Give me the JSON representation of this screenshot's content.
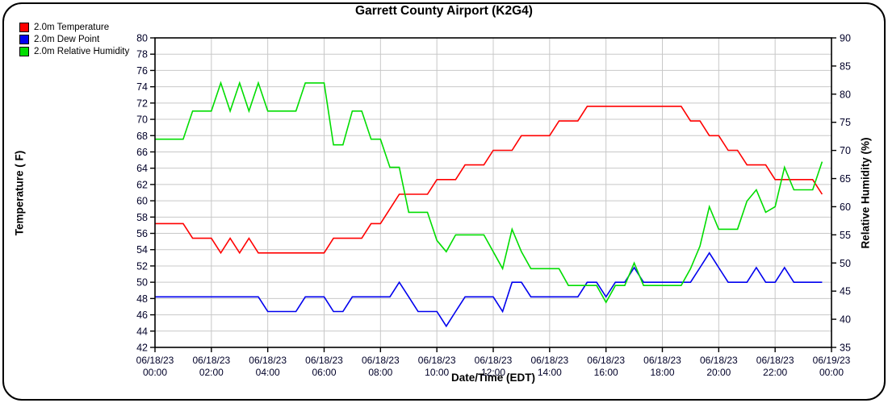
{
  "title": "Garrett County Airport (K2G4)",
  "legend": {
    "items": [
      {
        "label": "2.0m Temperature",
        "color": "#ff0000"
      },
      {
        "label": "2.0m Dew Point",
        "color": "#0000ee"
      },
      {
        "label": "2.0m Relative Humidity",
        "color": "#00dd00"
      }
    ]
  },
  "axes": {
    "x": {
      "title": "Date/Time (EDT)",
      "range_minutes": [
        0,
        1440
      ],
      "ticks": [
        {
          "date": "06/18/23",
          "time": "00:00"
        },
        {
          "date": "06/18/23",
          "time": "02:00"
        },
        {
          "date": "06/18/23",
          "time": "04:00"
        },
        {
          "date": "06/18/23",
          "time": "06:00"
        },
        {
          "date": "06/18/23",
          "time": "08:00"
        },
        {
          "date": "06/18/23",
          "time": "10:00"
        },
        {
          "date": "06/18/23",
          "time": "12:00"
        },
        {
          "date": "06/18/23",
          "time": "14:00"
        },
        {
          "date": "06/18/23",
          "time": "16:00"
        },
        {
          "date": "06/18/23",
          "time": "18:00"
        },
        {
          "date": "06/18/23",
          "time": "20:00"
        },
        {
          "date": "06/18/23",
          "time": "22:00"
        },
        {
          "date": "06/19/23",
          "time": "00:00"
        }
      ]
    },
    "y_left": {
      "title": "Temperature ( F)",
      "min": 42,
      "max": 80,
      "step": 2
    },
    "y_right": {
      "title": "Relative Humidity (%)",
      "min": 35,
      "max": 90,
      "step": 5
    }
  },
  "colors": {
    "grid": "#c8c8c8",
    "frame": "#000000",
    "tick_labels": "#000028",
    "temperature": "#ff0000",
    "dew_point": "#0000ee",
    "relative_humidity": "#00dd00"
  },
  "chart_data": {
    "type": "line",
    "title": "Garrett County Airport (K2G4)",
    "xlabel": "Date/Time (EDT)",
    "ylabel_left": "Temperature ( F)",
    "ylabel_right": "Relative Humidity (%)",
    "ylim_left": [
      42,
      80
    ],
    "ylim_right": [
      35,
      90
    ],
    "grid": true,
    "legend_position": "top-left-outside",
    "x_minutes": [
      0,
      20,
      40,
      60,
      80,
      100,
      120,
      140,
      160,
      180,
      200,
      220,
      240,
      260,
      280,
      300,
      320,
      340,
      360,
      380,
      400,
      420,
      440,
      460,
      480,
      500,
      520,
      540,
      560,
      580,
      600,
      620,
      640,
      660,
      680,
      700,
      720,
      740,
      760,
      780,
      800,
      820,
      840,
      860,
      880,
      900,
      920,
      940,
      960,
      980,
      1000,
      1020,
      1040,
      1060,
      1080,
      1100,
      1120,
      1140,
      1160,
      1180,
      1200,
      1220,
      1240,
      1260,
      1280,
      1300,
      1320,
      1340,
      1360,
      1380,
      1400,
      1420
    ],
    "series": [
      {
        "name": "2.0m Temperature",
        "axis": "left",
        "units": "F",
        "color": "#ff0000",
        "values": [
          57.2,
          57.2,
          57.2,
          57.2,
          55.4,
          55.4,
          55.4,
          53.6,
          55.4,
          53.6,
          55.4,
          53.6,
          53.6,
          53.6,
          53.6,
          53.6,
          53.6,
          53.6,
          53.6,
          55.4,
          55.4,
          55.4,
          55.4,
          57.2,
          57.2,
          59.0,
          60.8,
          60.8,
          60.8,
          60.8,
          62.6,
          62.6,
          62.6,
          64.4,
          64.4,
          64.4,
          66.2,
          66.2,
          66.2,
          68.0,
          68.0,
          68.0,
          68.0,
          69.8,
          69.8,
          69.8,
          71.6,
          71.6,
          71.6,
          71.6,
          71.6,
          71.6,
          71.6,
          71.6,
          71.6,
          71.6,
          71.6,
          69.8,
          69.8,
          68.0,
          68.0,
          66.2,
          66.2,
          64.4,
          64.4,
          64.4,
          62.6,
          62.6,
          62.6,
          62.6,
          62.6,
          60.8
        ]
      },
      {
        "name": "2.0m Dew Point",
        "axis": "left",
        "units": "F",
        "color": "#0000ee",
        "values": [
          48.2,
          48.2,
          48.2,
          48.2,
          48.2,
          48.2,
          48.2,
          48.2,
          48.2,
          48.2,
          48.2,
          48.2,
          46.4,
          46.4,
          46.4,
          46.4,
          48.2,
          48.2,
          48.2,
          46.4,
          46.4,
          48.2,
          48.2,
          48.2,
          48.2,
          48.2,
          50.0,
          48.2,
          46.4,
          46.4,
          46.4,
          44.6,
          46.4,
          48.2,
          48.2,
          48.2,
          48.2,
          46.4,
          50.0,
          50.0,
          48.2,
          48.2,
          48.2,
          48.2,
          48.2,
          48.2,
          50.0,
          50.0,
          48.2,
          50.0,
          50.0,
          51.8,
          50.0,
          50.0,
          50.0,
          50.0,
          50.0,
          50.0,
          51.8,
          53.6,
          51.8,
          50.0,
          50.0,
          50.0,
          51.8,
          50.0,
          50.0,
          51.8,
          50.0,
          50.0,
          50.0,
          50.0
        ]
      },
      {
        "name": "2.0m Relative Humidity",
        "axis": "right",
        "units": "%",
        "color": "#00dd00",
        "values": [
          72,
          72,
          72,
          72,
          77,
          77,
          77,
          82,
          77,
          82,
          77,
          82,
          77,
          77,
          77,
          77,
          82,
          82,
          82,
          71,
          71,
          77,
          77,
          72,
          72,
          67,
          67,
          59,
          59,
          59,
          54,
          52,
          55,
          55,
          55,
          55,
          52,
          49,
          56,
          52,
          49,
          49,
          49,
          49,
          46,
          46,
          46,
          46,
          43,
          46,
          46,
          50,
          46,
          46,
          46,
          46,
          46,
          49,
          53,
          60,
          56,
          56,
          56,
          61,
          63,
          59,
          60,
          67,
          63,
          63,
          63,
          68
        ]
      }
    ]
  }
}
